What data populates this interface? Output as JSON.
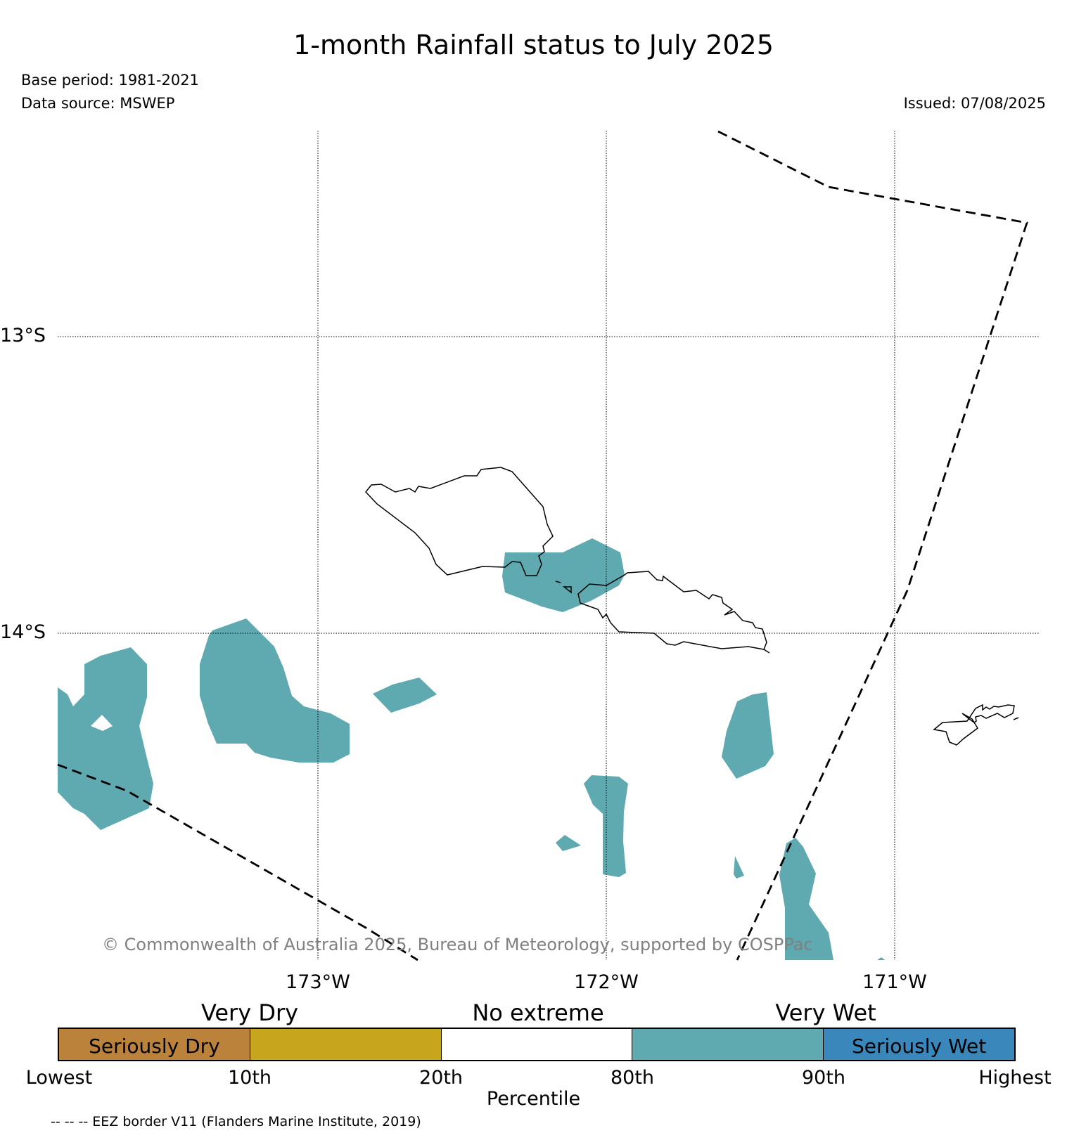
{
  "header": {
    "title": "1-month Rainfall status to July 2025",
    "base_period": "Base period: 1981-2021",
    "data_source": "Data source: MSWEP",
    "issued": "Issued: 07/08/2025"
  },
  "map": {
    "latitude_labels": [
      "13°S",
      "14°S"
    ],
    "longitude_labels": [
      "173°W",
      "172°W",
      "171°W"
    ],
    "copyright": "© Commonwealth of Australia 2025, Bureau of Meteorology, supported by COSPPac"
  },
  "legend": {
    "categories": [
      "Very Dry",
      "No extreme",
      "Very Wet"
    ],
    "segments": [
      {
        "label": "Seriously Dry",
        "color": "#bb823b"
      },
      {
        "label": "",
        "color": "#c7a61d"
      },
      {
        "label": "",
        "color": "#ffffff"
      },
      {
        "label": "",
        "color": "#5eaab0"
      },
      {
        "label": "Seriously Wet",
        "color": "#3a87bb"
      }
    ],
    "ticks": [
      "Lowest",
      "10th",
      "20th",
      "80th",
      "90th",
      "Highest"
    ],
    "xlabel": "Percentile"
  },
  "footer": {
    "eez_note": "-- -- -- EEZ border V11 (Flanders Marine Institute, 2019)"
  }
}
